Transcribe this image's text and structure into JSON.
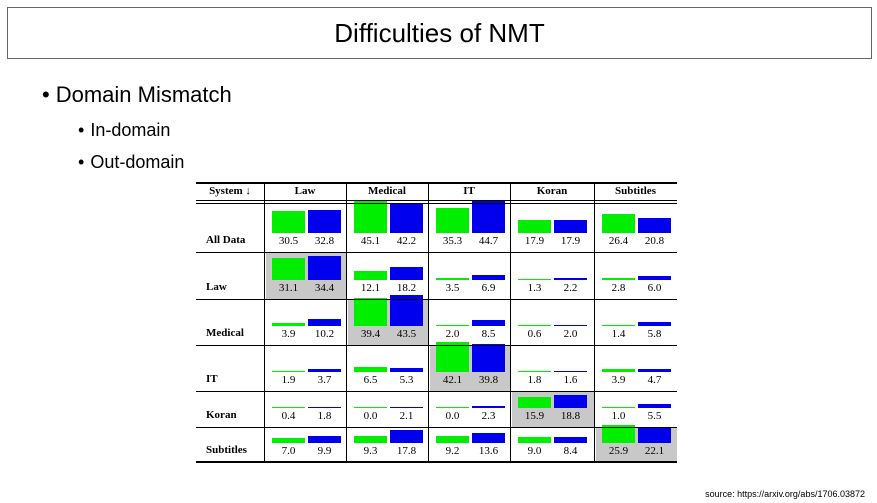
{
  "slide": {
    "title": "Difficulties of NMT",
    "bullets": [
      {
        "text": "Domain Mismatch",
        "level": 1
      },
      {
        "text": "In-domain",
        "level": 2
      },
      {
        "text": "Out-domain",
        "level": 2
      }
    ],
    "bullet_glyph": "•",
    "source": "source: https://arxiv.org/abs/1706.03872"
  },
  "chart_data": {
    "type": "table",
    "corner_label": "System ↓",
    "columns": [
      "Law",
      "Medical",
      "IT",
      "Koran",
      "Subtitles"
    ],
    "rows": [
      {
        "label": "All Data",
        "cells": [
          [
            30.5,
            32.8
          ],
          [
            45.1,
            42.2
          ],
          [
            35.3,
            44.7
          ],
          [
            17.9,
            17.9
          ],
          [
            26.4,
            20.8
          ]
        ]
      },
      {
        "label": "Law",
        "cells": [
          [
            31.1,
            34.4
          ],
          [
            12.1,
            18.2
          ],
          [
            3.5,
            6.9
          ],
          [
            1.3,
            2.2
          ],
          [
            2.8,
            6.0
          ]
        ]
      },
      {
        "label": "Medical",
        "cells": [
          [
            3.9,
            10.2
          ],
          [
            39.4,
            43.5
          ],
          [
            2.0,
            8.5
          ],
          [
            0.6,
            2.0
          ],
          [
            1.4,
            5.8
          ]
        ]
      },
      {
        "label": "IT",
        "cells": [
          [
            1.9,
            3.7
          ],
          [
            6.5,
            5.3
          ],
          [
            42.1,
            39.8
          ],
          [
            1.8,
            1.6
          ],
          [
            3.9,
            4.7
          ]
        ]
      },
      {
        "label": "Koran",
        "cells": [
          [
            0.4,
            1.8
          ],
          [
            0.0,
            2.1
          ],
          [
            0.0,
            2.3
          ],
          [
            15.9,
            18.8
          ],
          [
            1.0,
            5.5
          ]
        ]
      },
      {
        "label": "Subtitles",
        "cells": [
          [
            7.0,
            9.9
          ],
          [
            9.3,
            17.8
          ],
          [
            9.2,
            13.6
          ],
          [
            9.0,
            8.4
          ],
          [
            25.9,
            22.1
          ]
        ]
      }
    ],
    "bar_colors": [
      "#00ee00",
      "#0000ee"
    ],
    "highlight_color": "#c8c8c8",
    "value_max": 45.1
  }
}
